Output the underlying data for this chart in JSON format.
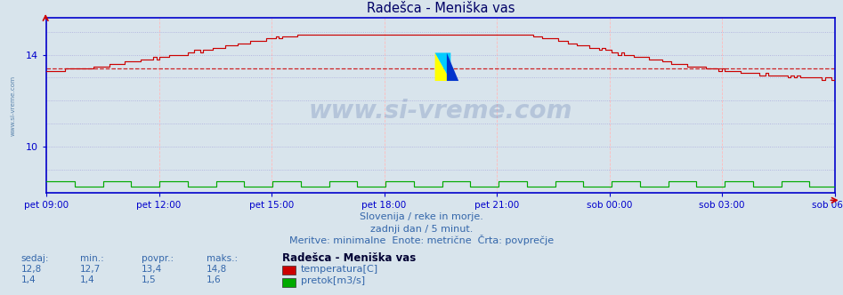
{
  "title": "Radešca - Meniška vas",
  "background_color": "#d8e4ec",
  "plot_bg_color": "#d8e4ec",
  "ylim": [
    8.0,
    15.6
  ],
  "yticks": [
    10,
    14
  ],
  "x_labels": [
    "pet 09:00",
    "pet 12:00",
    "pet 15:00",
    "pet 18:00",
    "pet 21:00",
    "sob 00:00",
    "sob 03:00",
    "sob 06:00"
  ],
  "n_points": 252,
  "temp_min": 12.7,
  "temp_max": 14.8,
  "temp_avg": 13.4,
  "temp_color": "#cc0000",
  "flow_color": "#00aa00",
  "avg_line_color": "#cc0000",
  "axis_color": "#0000cc",
  "grid_color_h": "#aaaadd",
  "grid_color_v": "#ffbbbb",
  "title_color": "#000066",
  "text_color": "#3366aa",
  "watermark": "www.si-vreme.com",
  "subtitle1": "Slovenija / reke in morje.",
  "subtitle2": "zadnji dan / 5 minut.",
  "subtitle3": "Meritve: minimalne  Enote: metrične  Črta: povprečje",
  "legend_title": "Radešca - Meniška vas",
  "legend_temp": "temperatura[C]",
  "legend_flow": "pretok[m3/s]",
  "stat_headers": [
    "sedaj:",
    "min.:",
    "povpr.:",
    "maks.:"
  ],
  "stat_temp": [
    "12,8",
    "12,7",
    "13,4",
    "14,8"
  ],
  "stat_flow": [
    "1,4",
    "1,4",
    "1,5",
    "1,6"
  ],
  "flow_plot_value": 8.3,
  "flow_plot_bump": 0.2
}
